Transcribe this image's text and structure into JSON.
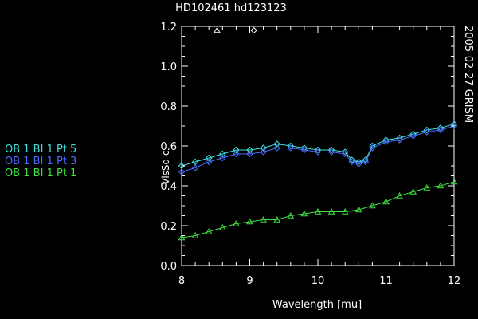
{
  "chart_data": {
    "type": "line",
    "title": "HD102461 hd123123",
    "side_label": "2005-02-27 GRISM",
    "xlabel": "Wavelength [mu]",
    "ylabel": "VisSq c",
    "xlim": [
      8,
      12
    ],
    "ylim": [
      0,
      1.2
    ],
    "x_ticks": [
      8,
      9,
      10,
      11,
      12
    ],
    "x_tick_labels": [
      "8",
      "9",
      "10",
      "11",
      "12"
    ],
    "y_ticks": [
      0,
      0.2,
      0.4,
      0.6,
      0.8,
      1.0,
      1.2
    ],
    "y_tick_labels": [
      "0.0",
      "0.2",
      "0.4",
      "0.6",
      "0.8",
      "1.0",
      "1.2"
    ],
    "grid": false,
    "legend_position": "left",
    "legend_markers": [
      {
        "x": 8.52,
        "y": 1.18,
        "marker": "triangle"
      },
      {
        "x": 9.06,
        "y": 1.18,
        "marker": "diamond"
      }
    ],
    "series": [
      {
        "name": "OB 1 BI 1 Pt 5",
        "color": "#40e0e0",
        "marker": "diamond",
        "x": [
          8.0,
          8.2,
          8.4,
          8.6,
          8.8,
          9.0,
          9.2,
          9.4,
          9.6,
          9.8,
          10.0,
          10.2,
          10.4,
          10.5,
          10.6,
          10.7,
          10.8,
          11.0,
          11.2,
          11.4,
          11.6,
          11.8,
          12.0
        ],
        "values": [
          0.5,
          0.52,
          0.54,
          0.56,
          0.58,
          0.58,
          0.59,
          0.61,
          0.6,
          0.59,
          0.58,
          0.58,
          0.57,
          0.53,
          0.52,
          0.53,
          0.6,
          0.63,
          0.64,
          0.66,
          0.68,
          0.69,
          0.71
        ]
      },
      {
        "name": "OB 1 BI 1 Pt 3",
        "color": "#4a6cff",
        "marker": "diamond",
        "x": [
          8.0,
          8.2,
          8.4,
          8.6,
          8.8,
          9.0,
          9.2,
          9.4,
          9.6,
          9.8,
          10.0,
          10.2,
          10.4,
          10.5,
          10.6,
          10.7,
          10.8,
          11.0,
          11.2,
          11.4,
          11.6,
          11.8,
          12.0
        ],
        "values": [
          0.47,
          0.49,
          0.52,
          0.54,
          0.56,
          0.56,
          0.57,
          0.59,
          0.59,
          0.58,
          0.57,
          0.57,
          0.56,
          0.52,
          0.51,
          0.52,
          0.59,
          0.62,
          0.63,
          0.65,
          0.67,
          0.68,
          0.7
        ]
      },
      {
        "name": "OB 1 BI 1 Pt 1",
        "color": "#40e040",
        "marker": "triangle",
        "x": [
          8.0,
          8.2,
          8.4,
          8.6,
          8.8,
          9.0,
          9.2,
          9.4,
          9.6,
          9.8,
          10.0,
          10.2,
          10.4,
          10.6,
          10.8,
          11.0,
          11.2,
          11.4,
          11.6,
          11.8,
          12.0
        ],
        "values": [
          0.14,
          0.15,
          0.17,
          0.19,
          0.21,
          0.22,
          0.23,
          0.23,
          0.25,
          0.26,
          0.27,
          0.27,
          0.27,
          0.28,
          0.3,
          0.32,
          0.35,
          0.37,
          0.39,
          0.4,
          0.42
        ]
      }
    ]
  }
}
